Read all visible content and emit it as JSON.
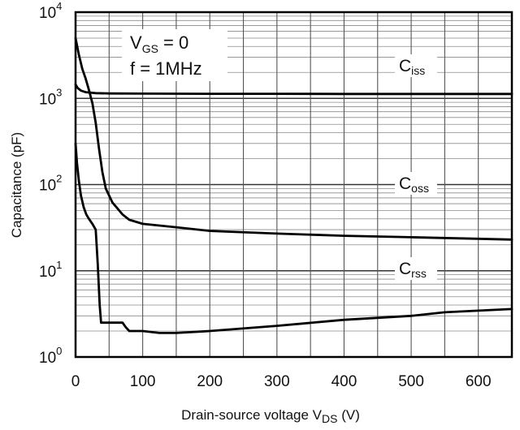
{
  "chart_data": {
    "type": "line",
    "title": "",
    "xlabel": {
      "main": "Drain-source voltage V",
      "sub": "DS",
      "unit": " (V)"
    },
    "ylabel": "Capacitance (pF)",
    "xlim": [
      0,
      650
    ],
    "ylim": [
      1,
      10000
    ],
    "yscale": "log",
    "grid": true,
    "x_ticks": [
      {
        "value": 0,
        "label": "0"
      },
      {
        "value": 100,
        "label": "100"
      },
      {
        "value": 200,
        "label": "200"
      },
      {
        "value": 300,
        "label": "300"
      },
      {
        "value": 400,
        "label": "400"
      },
      {
        "value": 500,
        "label": "500"
      },
      {
        "value": 600,
        "label": "600"
      }
    ],
    "y_ticks": [
      {
        "value": 1,
        "base": "10",
        "exp": "0"
      },
      {
        "value": 10,
        "base": "10",
        "exp": "1"
      },
      {
        "value": 100,
        "base": "10",
        "exp": "2"
      },
      {
        "value": 1000,
        "base": "10",
        "exp": "3"
      },
      {
        "value": 10000,
        "base": "10",
        "exp": "4"
      }
    ],
    "conditions": [
      {
        "main": "V",
        "sub": "GS",
        "rest": " = 0"
      },
      {
        "main": "f = 1MHz",
        "sub": "",
        "rest": ""
      }
    ],
    "series": [
      {
        "name": {
          "main": "C",
          "sub": "iss"
        },
        "x": [
          0,
          3,
          8,
          15,
          30,
          50,
          100,
          200,
          300,
          400,
          500,
          650
        ],
        "y": [
          1450,
          1320,
          1230,
          1180,
          1150,
          1140,
          1135,
          1130,
          1130,
          1125,
          1125,
          1125
        ]
      },
      {
        "name": {
          "main": "C",
          "sub": "oss"
        },
        "x": [
          0,
          5,
          10,
          15,
          20,
          25,
          30,
          35,
          40,
          45,
          55,
          70,
          80,
          100,
          150,
          200,
          300,
          400,
          500,
          600,
          650
        ],
        "y": [
          5000,
          3200,
          2200,
          1700,
          1250,
          880,
          520,
          260,
          140,
          90,
          62,
          45,
          39,
          35,
          32,
          29,
          27,
          25.5,
          24.5,
          23.5,
          23
        ]
      },
      {
        "name": {
          "main": "C",
          "sub": "rss"
        },
        "x": [
          0,
          2,
          5,
          8,
          12,
          16,
          20,
          25,
          30,
          33,
          36,
          38,
          40,
          50,
          60,
          70,
          75,
          80,
          100,
          125,
          150,
          200,
          300,
          400,
          500,
          550,
          650
        ],
        "y": [
          300,
          180,
          110,
          75,
          55,
          45,
          40,
          35,
          30,
          12,
          4,
          2.5,
          2.5,
          2.5,
          2.5,
          2.5,
          2.2,
          2.0,
          2.0,
          1.9,
          1.9,
          2.0,
          2.3,
          2.7,
          3.0,
          3.3,
          3.6
        ]
      }
    ]
  }
}
